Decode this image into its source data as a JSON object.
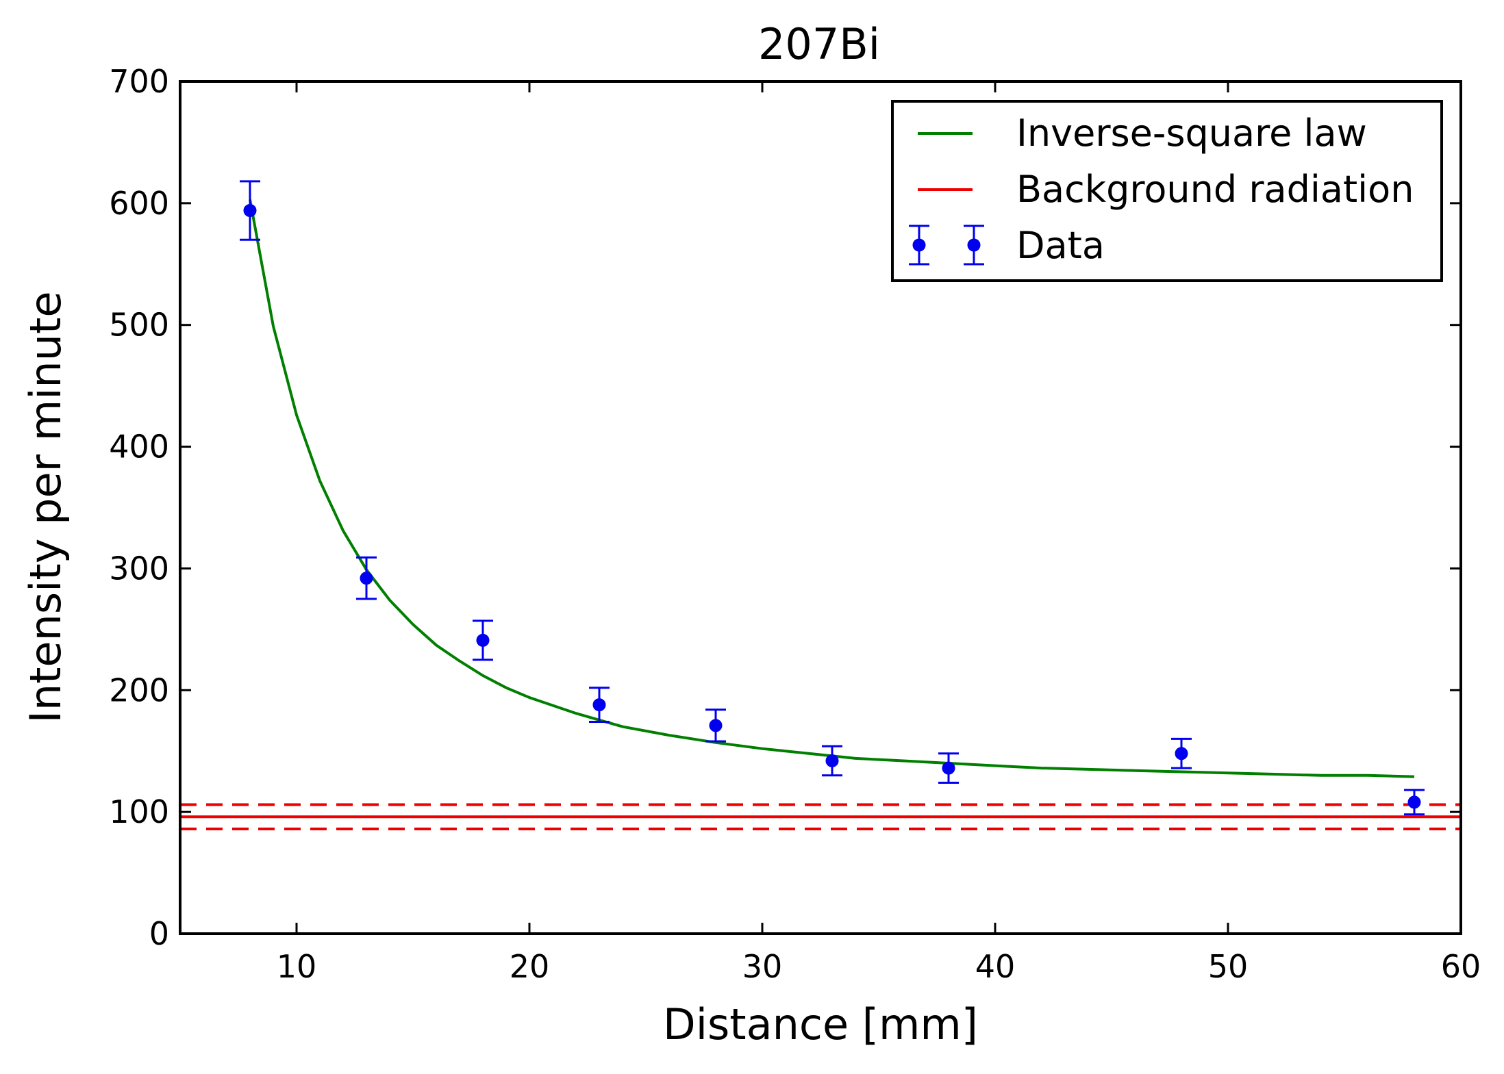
{
  "chart_data": {
    "type": "scatter",
    "title": "207Bi",
    "xlabel": "Distance [mm]",
    "ylabel": "Intensity per minute",
    "xlim": [
      5,
      60
    ],
    "ylim": [
      0,
      700
    ],
    "xticks": [
      10,
      20,
      30,
      40,
      50,
      60
    ],
    "yticks": [
      0,
      100,
      200,
      300,
      400,
      500,
      600,
      700
    ],
    "grid": false,
    "legend_position": "top-right",
    "colors": {
      "data": "#0000ee",
      "fit": "#007f00",
      "background": "#ee0000"
    },
    "series": [
      {
        "name": "Data",
        "kind": "errorbar",
        "x": [
          8,
          13,
          18,
          23,
          28,
          33,
          38,
          48,
          58
        ],
        "y": [
          594,
          292,
          241,
          188,
          171,
          142,
          136,
          148,
          108
        ],
        "yerr": [
          24,
          17,
          16,
          14,
          13,
          12,
          12,
          12,
          10
        ]
      },
      {
        "name": "Inverse-square law",
        "kind": "line",
        "x": [
          8,
          9,
          10,
          11,
          12,
          13,
          14,
          15,
          16,
          17,
          18,
          19,
          20,
          22,
          24,
          26,
          28,
          30,
          32,
          34,
          36,
          38,
          40,
          42,
          44,
          46,
          48,
          50,
          52,
          54,
          56,
          58
        ],
        "y": [
          603,
          499,
          426,
          372,
          331,
          299,
          274,
          254,
          237,
          224,
          212,
          202,
          194,
          181,
          170,
          163,
          157,
          152,
          148,
          144,
          142,
          140,
          138,
          136,
          135,
          134,
          133,
          132,
          131,
          130,
          130,
          129
        ]
      },
      {
        "name": "Background radiation",
        "kind": "hline",
        "y": 96,
        "band": [
          86,
          106
        ]
      }
    ]
  }
}
